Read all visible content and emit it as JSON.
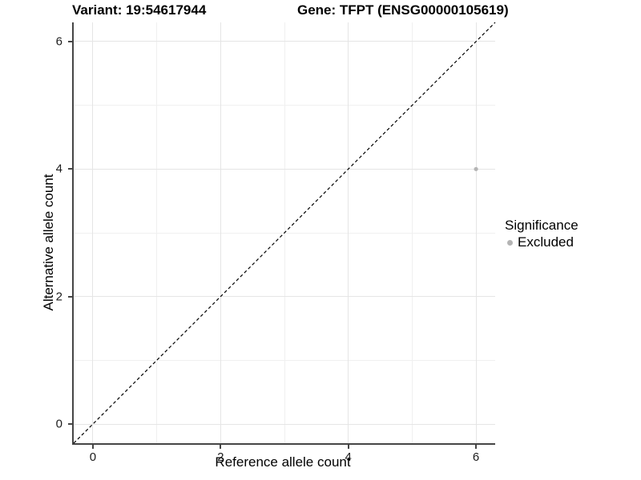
{
  "titles": {
    "left": "Variant: 19:54617944",
    "right": "Gene: TFPT (ENSG00000105619)"
  },
  "chart_data": {
    "type": "scatter",
    "title_left": "Variant: 19:54617944",
    "title_right": "Gene: TFPT (ENSG00000105619)",
    "xlabel": "Reference allele count",
    "ylabel": "Alternative allele count",
    "xlim": [
      -0.3,
      6.3
    ],
    "ylim": [
      -0.3,
      6.3
    ],
    "x_ticks": [
      0,
      2,
      4,
      6
    ],
    "y_ticks": [
      0,
      2,
      4,
      6
    ],
    "minor_gridlines": [
      1,
      3,
      5
    ],
    "grid": true,
    "points": [
      {
        "x": 6,
        "y": 4,
        "series": "Excluded"
      }
    ],
    "identity_line": {
      "from": [
        -0.3,
        -0.3
      ],
      "to": [
        6.3,
        6.3
      ],
      "style": "dashed",
      "color": "#000000"
    },
    "legend": {
      "title": "Significance",
      "position": "right",
      "items": [
        {
          "label": "Excluded",
          "color": "#b4b4b4"
        }
      ]
    },
    "colors": {
      "point": "#b4b4b4",
      "grid_major": "#e5e5e5",
      "grid_minor": "#f0f0f0",
      "axis_line": "#454545",
      "tick_text": "#1c1c1c"
    }
  }
}
